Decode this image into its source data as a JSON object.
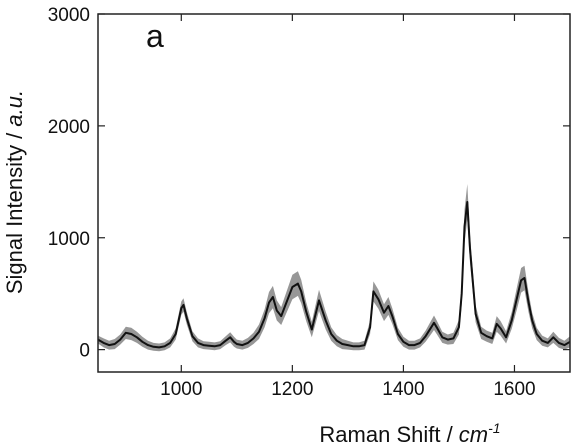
{
  "chart_data": {
    "type": "line",
    "panel_label": "a",
    "xlabel": {
      "main": "Raman Shift / ",
      "unit": "cm",
      "sup": "-1"
    },
    "ylabel": {
      "main": "Signal Intensity / ",
      "unit": "a.u."
    },
    "xlim": [
      850,
      1700
    ],
    "ylim": [
      -200,
      3000
    ],
    "x_ticks": [
      1000,
      1200,
      1400,
      1600
    ],
    "y_ticks": [
      0,
      1000,
      2000,
      3000
    ],
    "grid": false,
    "series": [
      {
        "color": "#111111",
        "envelope_color": "#8c8c8c",
        "x": [
          850,
          860,
          870,
          880,
          890,
          900,
          910,
          920,
          930,
          940,
          950,
          960,
          970,
          980,
          990,
          1000,
          1004,
          1010,
          1020,
          1030,
          1040,
          1050,
          1060,
          1070,
          1080,
          1088,
          1095,
          1100,
          1110,
          1120,
          1130,
          1140,
          1150,
          1158,
          1165,
          1172,
          1180,
          1190,
          1200,
          1210,
          1216,
          1225,
          1235,
          1248,
          1260,
          1270,
          1280,
          1290,
          1300,
          1310,
          1320,
          1330,
          1340,
          1346,
          1355,
          1365,
          1373,
          1380,
          1390,
          1400,
          1410,
          1420,
          1430,
          1440,
          1450,
          1455,
          1460,
          1470,
          1480,
          1490,
          1500,
          1505,
          1510,
          1515,
          1520,
          1530,
          1540,
          1550,
          1560,
          1568,
          1575,
          1585,
          1595,
          1605,
          1612,
          1618,
          1625,
          1632,
          1640,
          1650,
          1660,
          1670,
          1680,
          1690,
          1700
        ],
        "y": [
          90,
          60,
          40,
          50,
          90,
          150,
          140,
          110,
          70,
          40,
          25,
          20,
          30,
          60,
          140,
          370,
          400,
          280,
          120,
          60,
          40,
          35,
          30,
          40,
          80,
          110,
          70,
          50,
          40,
          60,
          100,
          160,
          280,
          420,
          470,
          350,
          300,
          430,
          560,
          590,
          520,
          340,
          180,
          440,
          260,
          140,
          80,
          50,
          40,
          30,
          30,
          40,
          200,
          520,
          450,
          330,
          390,
          300,
          140,
          70,
          40,
          40,
          60,
          120,
          200,
          240,
          200,
          110,
          90,
          100,
          200,
          500,
          1100,
          1320,
          900,
          320,
          150,
          120,
          100,
          230,
          190,
          110,
          260,
          470,
          620,
          640,
          430,
          260,
          140,
          80,
          60,
          110,
          60,
          40,
          70
        ],
        "envelope": [
          70,
          80,
          80,
          90,
          90,
          110,
          110,
          100,
          90,
          80,
          70,
          70,
          70,
          80,
          100,
          120,
          120,
          110,
          90,
          80,
          70,
          70,
          70,
          70,
          80,
          90,
          90,
          80,
          80,
          90,
          100,
          130,
          160,
          190,
          200,
          180,
          160,
          190,
          220,
          220,
          210,
          170,
          140,
          190,
          160,
          120,
          100,
          90,
          80,
          70,
          70,
          80,
          120,
          180,
          170,
          150,
          160,
          140,
          110,
          90,
          80,
          80,
          80,
          100,
          120,
          130,
          120,
          100,
          90,
          100,
          130,
          200,
          300,
          320,
          250,
          150,
          110,
          100,
          100,
          140,
          130,
          110,
          150,
          200,
          220,
          220,
          180,
          140,
          110,
          90,
          80,
          100,
          90,
          80,
          100
        ]
      }
    ]
  }
}
